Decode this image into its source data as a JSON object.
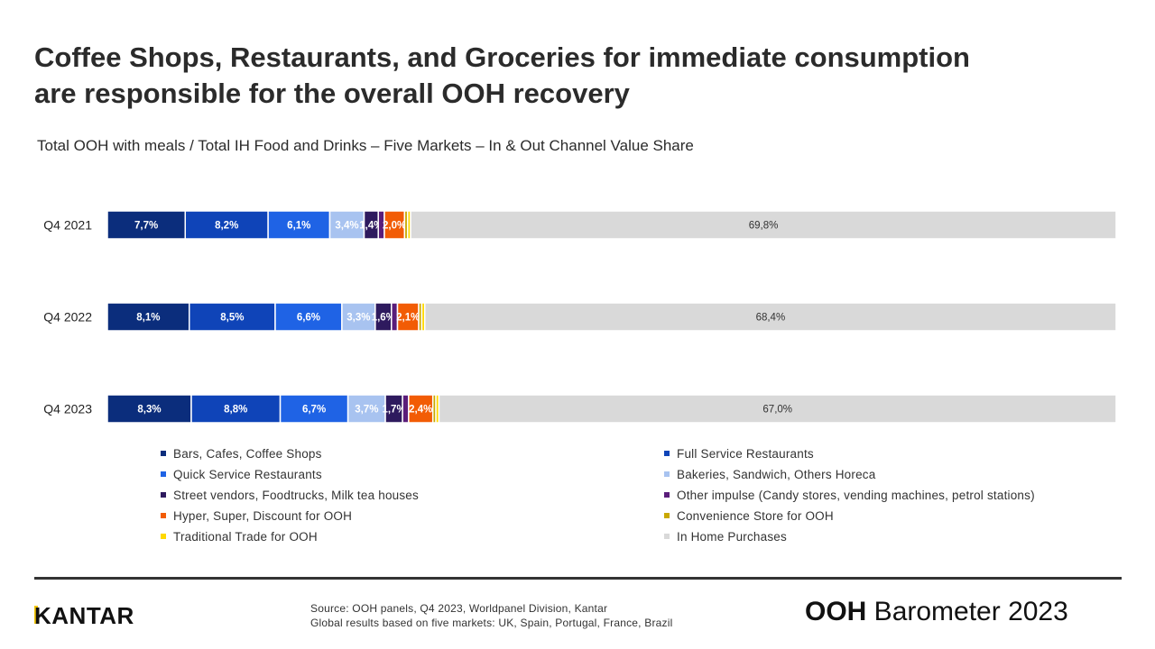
{
  "title_line1": "Coffee Shops, Restaurants, and Groceries for immediate consumption",
  "title_line2": "are responsible for the overall OOH recovery",
  "subtitle": "Total OOH with meals / Total IH Food and Drinks – Five Markets – In & Out Channel Value Share",
  "chart_data": {
    "type": "bar",
    "orientation": "horizontal-stacked-100",
    "categories": [
      "Q4 2021",
      "Q4 2022",
      "Q4 2023"
    ],
    "series": [
      {
        "name": "Bars, Cafes, Coffee Shops",
        "color": "#0b2d7c",
        "values": [
          7.7,
          8.1,
          8.3
        ],
        "labels": [
          "7,7%",
          "8,1%",
          "8,3%"
        ]
      },
      {
        "name": "Full Service Restaurants",
        "color": "#0f44b8",
        "values": [
          8.2,
          8.5,
          8.8
        ],
        "labels": [
          "8,2%",
          "8,5%",
          "8,8%"
        ]
      },
      {
        "name": "Quick Service Restaurants",
        "color": "#1f63e5",
        "values": [
          6.1,
          6.6,
          6.7
        ],
        "labels": [
          "6,1%",
          "6,6%",
          "6,7%"
        ]
      },
      {
        "name": "Bakeries, Sandwich, Others Horeca",
        "color": "#a8c3f0",
        "values": [
          3.4,
          3.3,
          3.7
        ],
        "labels": [
          "3,4%",
          "3,3%",
          "3,7%"
        ]
      },
      {
        "name": "Street vendors, Foodtrucks, Milk tea houses",
        "color": "#2e1a5e",
        "values": [
          1.4,
          1.6,
          1.7
        ],
        "labels": [
          "1,4%",
          "1,6%",
          "1,7%"
        ]
      },
      {
        "name": "Other impulse (Candy stores, vending machines, petrol stations)",
        "color": "#5a1d7a",
        "values": [
          0.6,
          0.6,
          0.6
        ],
        "labels": [
          "",
          "",
          ""
        ]
      },
      {
        "name": "Hyper, Super, Discount for OOH",
        "color": "#f25c05",
        "values": [
          2.0,
          2.1,
          2.4
        ],
        "labels": [
          "2,0%",
          "2,1%",
          "2,4%"
        ]
      },
      {
        "name": "Convenience Store for OOH",
        "color": "#c9a800",
        "values": [
          0.3,
          0.3,
          0.3
        ],
        "labels": [
          "",
          "",
          ""
        ]
      },
      {
        "name": "Traditional Trade for OOH",
        "color": "#ffd900",
        "values": [
          0.3,
          0.3,
          0.3
        ],
        "labels": [
          "",
          "",
          ""
        ]
      },
      {
        "name": "In Home Purchases",
        "color": "#d9d9d9",
        "values": [
          69.8,
          68.4,
          67.0
        ],
        "labels": [
          "69,8%",
          "68,4%",
          "67,0%"
        ]
      }
    ],
    "xlim": [
      0,
      100
    ],
    "legend_position": "bottom"
  },
  "footer": {
    "logo": "KANTAR",
    "source_line1": "Source: OOH panels, Q4 2023, Worldpanel Division,  Kantar",
    "source_line2": "Global results based on five markets: UK, Spain, Portugal, France, Brazil",
    "brand_bold": "OOH",
    "brand_rest": " Barometer 2023"
  }
}
